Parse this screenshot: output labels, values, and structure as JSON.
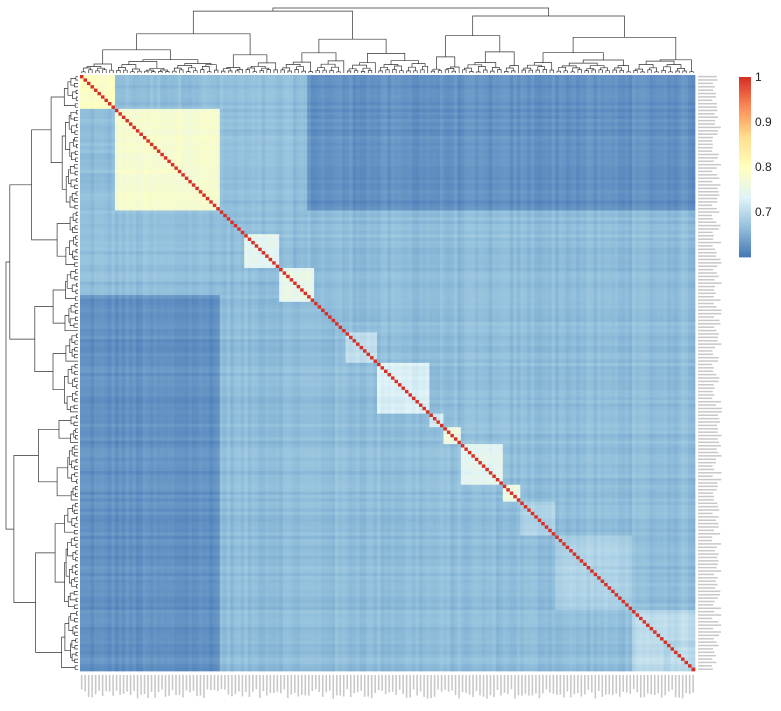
{
  "chart_data": {
    "type": "heatmap",
    "title": "",
    "xlabel": "",
    "ylabel": "",
    "n": 176,
    "color_scale": {
      "min": 0.6,
      "max": 1.0,
      "ticks": [
        1,
        0.9,
        0.8,
        0.7
      ],
      "tick_labels": [
        "1",
        "0.9",
        "0.8",
        "0.7"
      ],
      "colors": [
        "#4575b4",
        "#91bfdb",
        "#e0f3f8",
        "#ffffbf",
        "#fee090",
        "#fc8d59",
        "#d73027"
      ]
    },
    "diagonal_value": 1.0,
    "background_value": 0.665,
    "block_bounds": [
      0,
      10,
      40,
      47,
      57,
      67,
      76,
      85,
      100,
      104,
      109,
      121,
      126,
      136,
      158,
      176
    ],
    "blocks": [
      {
        "start": 0,
        "end": 10,
        "value": 0.79
      },
      {
        "start": 10,
        "end": 40,
        "value": 0.78
      },
      {
        "start": 47,
        "end": 57,
        "value": 0.74
      },
      {
        "start": 57,
        "end": 67,
        "value": 0.75
      },
      {
        "start": 76,
        "end": 85,
        "value": 0.71
      },
      {
        "start": 85,
        "end": 100,
        "value": 0.73
      },
      {
        "start": 100,
        "end": 104,
        "value": 0.72
      },
      {
        "start": 104,
        "end": 109,
        "value": 0.76
      },
      {
        "start": 109,
        "end": 121,
        "value": 0.74
      },
      {
        "start": 121,
        "end": 126,
        "value": 0.76
      },
      {
        "start": 126,
        "end": 136,
        "value": 0.69
      },
      {
        "start": 136,
        "end": 158,
        "value": 0.69
      },
      {
        "start": 158,
        "end": 176,
        "value": 0.7
      }
    ],
    "low_regions": [
      {
        "rows": [
          0,
          40
        ],
        "cols": [
          65,
          176
        ],
        "value": 0.625
      },
      {
        "rows": [
          65,
          110
        ],
        "cols": [
          0,
          40
        ],
        "value": 0.625
      },
      {
        "rows": [
          110,
          176
        ],
        "cols": [
          0,
          40
        ],
        "value": 0.64
      }
    ],
    "row_labels": [],
    "col_labels": []
  }
}
